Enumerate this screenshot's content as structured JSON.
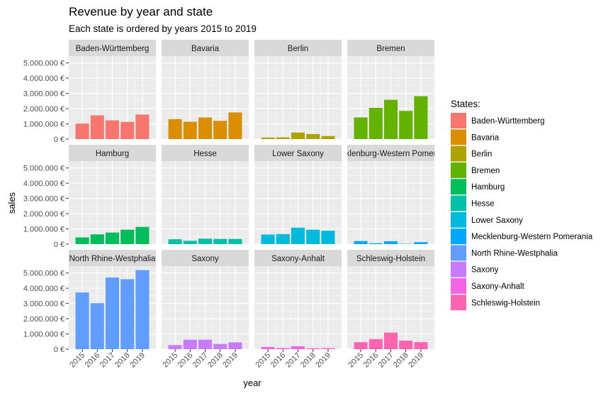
{
  "chart_data": {
    "type": "bar",
    "title": "Revenue by year and state",
    "subtitle": "Each state is ordered by years 2015 to 2019",
    "xlabel": "year",
    "ylabel": "sales",
    "categories": [
      "2015",
      "2016",
      "2017",
      "2018",
      "2019"
    ],
    "y_ticks": [
      0,
      1000000,
      2000000,
      3000000,
      4000000,
      5000000
    ],
    "y_tick_labels": [
      "0 €",
      "1.000.000 €",
      "2.000.000 €",
      "3.000.000 €",
      "4.000.000 €",
      "5.000.000 €"
    ],
    "ylim": [
      0,
      5450000
    ],
    "legend_title": "States:",
    "legend_position": "right",
    "grid": true,
    "series": [
      {
        "name": "Baden-Württemberg",
        "color": "#F8766D",
        "values": [
          1020000,
          1560000,
          1230000,
          1130000,
          1610000
        ]
      },
      {
        "name": "Bavaria",
        "color": "#DB8E00",
        "values": [
          1310000,
          1140000,
          1420000,
          1200000,
          1750000
        ]
      },
      {
        "name": "Berlin",
        "color": "#AEA200",
        "values": [
          100000,
          110000,
          430000,
          330000,
          200000
        ]
      },
      {
        "name": "Bremen",
        "color": "#64B200",
        "values": [
          1420000,
          2050000,
          2580000,
          1850000,
          2820000
        ]
      },
      {
        "name": "Hamburg",
        "color": "#00BD5C",
        "values": [
          440000,
          640000,
          760000,
          950000,
          1130000
        ]
      },
      {
        "name": "Hesse",
        "color": "#00C1A7",
        "values": [
          320000,
          220000,
          360000,
          340000,
          340000
        ]
      },
      {
        "name": "Lower Saxony",
        "color": "#00BADE",
        "values": [
          630000,
          660000,
          1080000,
          950000,
          880000
        ]
      },
      {
        "name": "Mecklenburg-Western Pomerania",
        "color": "#00A6FF",
        "values": [
          200000,
          60000,
          190000,
          20000,
          130000
        ]
      },
      {
        "name": "North Rhine-Westphalia",
        "color": "#619CFF",
        "values": [
          3720000,
          3020000,
          4700000,
          4590000,
          5190000
        ]
      },
      {
        "name": "Saxony",
        "color": "#C77CFF",
        "values": [
          270000,
          620000,
          620000,
          340000,
          450000
        ]
      },
      {
        "name": "Saxony-Anhalt",
        "color": "#F564E3",
        "values": [
          140000,
          70000,
          190000,
          60000,
          70000
        ]
      },
      {
        "name": "Schleswig-Holstein",
        "color": "#FF64B0",
        "values": [
          460000,
          660000,
          1090000,
          560000,
          460000
        ]
      }
    ]
  }
}
